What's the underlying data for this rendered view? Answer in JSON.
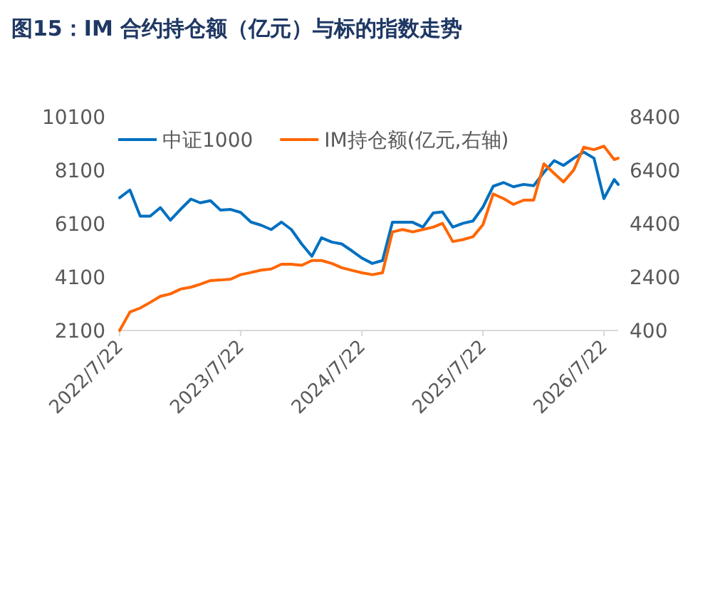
{
  "chart_data": {
    "type": "line",
    "title": "图15：IM 合约持仓额（亿元）与标的指数走势",
    "x": [
      "2022-07-22",
      "2022-08-22",
      "2022-09-22",
      "2022-10-22",
      "2022-11-22",
      "2022-12-22",
      "2023-01-22",
      "2023-02-22",
      "2023-03-22",
      "2023-04-22",
      "2023-05-22",
      "2023-06-22",
      "2023-07-22",
      "2023-08-22",
      "2023-09-22",
      "2023-10-22",
      "2023-11-22",
      "2023-12-22",
      "2024-01-22",
      "2024-02-22",
      "2024-03-22",
      "2024-04-22",
      "2024-05-22",
      "2024-06-22",
      "2024-07-22",
      "2024-08-22",
      "2024-09-22",
      "2024-10-22",
      "2024-11-22",
      "2024-12-22",
      "2025-01-22",
      "2025-02-22",
      "2025-03-22",
      "2025-04-22",
      "2025-05-22",
      "2025-06-22",
      "2025-07-22",
      "2025-08-22",
      "2025-09-22",
      "2025-10-22",
      "2025-11-22",
      "2025-12-22",
      "2026-01-22",
      "2026-02-22",
      "2026-03-22",
      "2026-04-22",
      "2026-05-22",
      "2026-06-22",
      "2026-07-22",
      "2026-08-22",
      "2026-09-03"
    ],
    "series": [
      {
        "name": "中证1000",
        "color": "#0070c0",
        "values": [
          7070,
          7360,
          6380,
          6380,
          6700,
          6230,
          6640,
          7020,
          6880,
          6960,
          6610,
          6630,
          6520,
          6160,
          6040,
          5880,
          6160,
          5880,
          5340,
          4880,
          5570,
          5410,
          5340,
          5080,
          4810,
          4610,
          4720,
          6150,
          6150,
          6150,
          5970,
          6500,
          6540,
          5970,
          6110,
          6200,
          6720,
          7500,
          7640,
          7480,
          7570,
          7520,
          8020,
          8460,
          8280,
          8550,
          8780,
          8550,
          7040,
          7750,
          7570
        ]
      },
      {
        "name": "IM持仓额(亿元,右轴)",
        "color": "#ff6600",
        "axis": "y2",
        "values": [
          400,
          1090,
          1240,
          1450,
          1680,
          1770,
          1950,
          2020,
          2130,
          2270,
          2290,
          2320,
          2490,
          2570,
          2660,
          2700,
          2880,
          2880,
          2840,
          3020,
          3020,
          2910,
          2750,
          2650,
          2560,
          2490,
          2560,
          4090,
          4180,
          4090,
          4180,
          4270,
          4410,
          3730,
          3800,
          3910,
          4360,
          5510,
          5340,
          5120,
          5280,
          5280,
          6640,
          6280,
          5960,
          6410,
          7260,
          7170,
          7300,
          6800,
          6850
        ]
      }
    ],
    "xlim": [
      "2022-07-22",
      "2026-09-03"
    ],
    "xticks": [
      {
        "value": "2022-07-22",
        "label": "2022/7/22"
      },
      {
        "value": "2023-07-22",
        "label": "2023/7/22"
      },
      {
        "value": "2024-07-22",
        "label": "2024/7/22"
      },
      {
        "value": "2025-07-22",
        "label": "2025/7/22"
      },
      {
        "value": "2026-07-22",
        "label": "2026/7/22"
      }
    ],
    "ylim": [
      2100,
      10100
    ],
    "yticks": [
      2100,
      4100,
      6100,
      8100,
      10100
    ],
    "y2lim": [
      400,
      8400
    ],
    "y2ticks": [
      400,
      2400,
      4400,
      6400,
      8400
    ],
    "legend": "top"
  }
}
